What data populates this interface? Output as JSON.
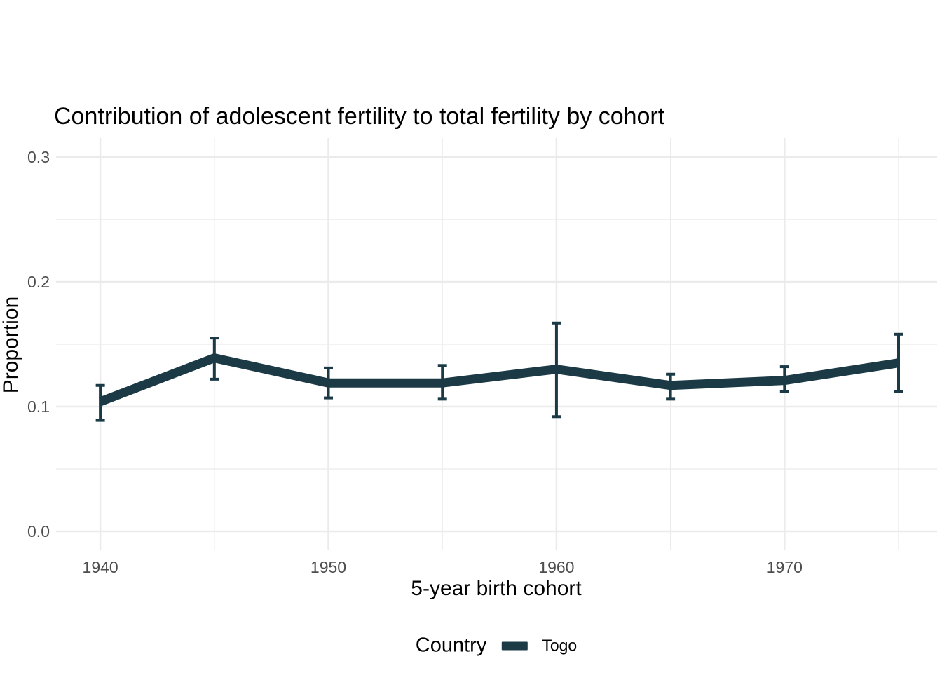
{
  "chart_data": {
    "type": "line",
    "title": "Contribution of adolescent fertility to total fertility by cohort",
    "xlabel": "5-year birth cohort",
    "ylabel": "Proportion",
    "x": [
      1940,
      1945,
      1950,
      1955,
      1960,
      1965,
      1970,
      1975
    ],
    "series": [
      {
        "name": "Togo",
        "values": [
          0.104,
          0.139,
          0.119,
          0.119,
          0.13,
          0.117,
          0.121,
          0.135
        ],
        "lower": [
          0.089,
          0.122,
          0.107,
          0.106,
          0.092,
          0.106,
          0.112,
          0.112
        ],
        "upper": [
          0.117,
          0.155,
          0.131,
          0.133,
          0.167,
          0.126,
          0.132,
          0.158
        ],
        "color": "#1b3a46"
      }
    ],
    "error_bars": true,
    "xlim": [
      1938.06,
      1976.69
    ],
    "ylim": [
      -0.0146,
      0.3152
    ],
    "xticks": {
      "major": [
        1940,
        1950,
        1960,
        1970
      ],
      "minor": [
        1945,
        1955,
        1965,
        1975
      ],
      "major_labels": [
        "1940",
        "1950",
        "1960",
        "1970"
      ]
    },
    "yticks": {
      "major": [
        0.0,
        0.1,
        0.2,
        0.3
      ],
      "minor": [
        0.05,
        0.15,
        0.25
      ],
      "major_labels": [
        "0.0",
        "0.1",
        "0.2",
        "0.3"
      ]
    },
    "grid": true,
    "legend": {
      "title": "Country",
      "position": "bottom"
    },
    "colors": {
      "background": "#ffffff",
      "grid_major": "#ebebeb",
      "grid_minor": "#ebebeb",
      "tick_text": "#4d4d4d",
      "text": "#000000"
    }
  }
}
